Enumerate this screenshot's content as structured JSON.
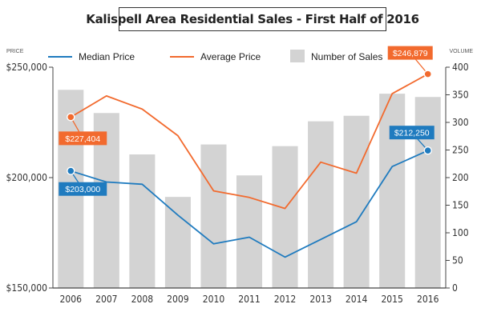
{
  "chart_data": {
    "type": "bar+line",
    "title": "Kalispell Area Residential Sales - First Half of 2016",
    "left_axis_label": "PRICE",
    "right_axis_label": "VOLUME",
    "categories": [
      "2006",
      "2007",
      "2008",
      "2009",
      "2010",
      "2011",
      "2012",
      "2013",
      "2014",
      "2015",
      "2016"
    ],
    "left_ylim": [
      150000,
      250000
    ],
    "left_ticks": [
      "$150,000",
      "$200,000",
      "$250,000"
    ],
    "right_ylim": [
      0,
      400
    ],
    "right_ticks": [
      "0",
      "50",
      "100",
      "150",
      "200",
      "250",
      "300",
      "350",
      "400"
    ],
    "series": [
      {
        "name": "Number of Sales",
        "kind": "bar",
        "axis": "right",
        "color": "#d3d3d3",
        "values": [
          359,
          317,
          242,
          165,
          260,
          204,
          257,
          302,
          312,
          352,
          346
        ]
      },
      {
        "name": "Median Price",
        "kind": "line",
        "axis": "left",
        "color": "#1f7bbf",
        "values": [
          203000,
          198000,
          197000,
          183000,
          170000,
          173000,
          164000,
          172000,
          180000,
          205000,
          212250
        ]
      },
      {
        "name": "Average Price",
        "kind": "line",
        "axis": "left",
        "color": "#f26a2e",
        "values": [
          227404,
          237000,
          231000,
          219000,
          194000,
          191000,
          186000,
          207000,
          202000,
          238000,
          246879
        ]
      }
    ],
    "callouts": [
      {
        "series": 2,
        "index": 0,
        "label": "$227,404",
        "color": "#f26a2e"
      },
      {
        "series": 1,
        "index": 0,
        "label": "$203,000",
        "color": "#1f7bbf"
      },
      {
        "series": 2,
        "index": 10,
        "label": "$246,879",
        "color": "#f26a2e"
      },
      {
        "series": 1,
        "index": 10,
        "label": "$212,250",
        "color": "#1f7bbf"
      }
    ],
    "legend_placement": "top",
    "grid": false
  }
}
